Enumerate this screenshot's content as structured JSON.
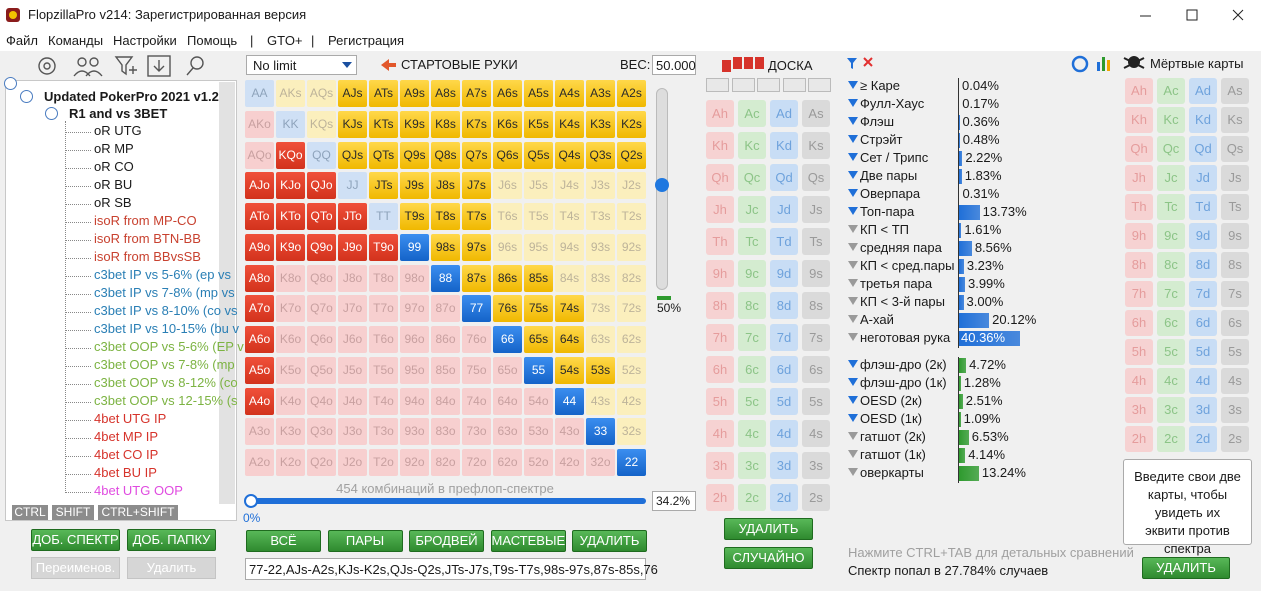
{
  "window": {
    "title": "FlopzillaPro v214: Зарегистрированная версия",
    "menu": [
      "Файл",
      "Команды",
      "Настройки",
      "Помощь",
      "|",
      "GTO+",
      "|",
      "Регистрация"
    ]
  },
  "tree": {
    "root": "Updated PokerPro 2021 v1.2",
    "folder": "R1 and vs 3BET",
    "items": [
      {
        "label": "oR UTG",
        "color": "#1a1a1a"
      },
      {
        "label": "oR MP",
        "color": "#1a1a1a"
      },
      {
        "label": "oR CO",
        "color": "#1a1a1a"
      },
      {
        "label": "oR BU",
        "color": "#1a1a1a"
      },
      {
        "label": "oR SB",
        "color": "#1a1a1a"
      },
      {
        "label": "isoR from MP-CO",
        "color": "#c8412f"
      },
      {
        "label": "isoR from BTN-BB",
        "color": "#c8412f"
      },
      {
        "label": "isoR from BBvsSB",
        "color": "#c8412f"
      },
      {
        "label": "c3bet IP vs 5-6% (ep vs",
        "color": "#2a7fb5"
      },
      {
        "label": "c3bet IP vs 7-8% (mp vs",
        "color": "#2a7fb5"
      },
      {
        "label": "c3bet IP vs 8-10% (co vs",
        "color": "#2a7fb5"
      },
      {
        "label": "c3bet IP vs 10-15% (bu v",
        "color": "#2a7fb5"
      },
      {
        "label": "c3bet OOP vs 5-6% (EP v",
        "color": "#7cb342"
      },
      {
        "label": "c3bet OOP vs 7-8% (mp",
        "color": "#7cb342"
      },
      {
        "label": "c3bet OOP vs 8-12% (co",
        "color": "#7cb342"
      },
      {
        "label": "c3bet OOP vs 12-15% (s",
        "color": "#7cb342"
      },
      {
        "label": "4bet UTG IP",
        "color": "#d6332b"
      },
      {
        "label": "4bet MP IP",
        "color": "#d6332b"
      },
      {
        "label": "4bet CO IP",
        "color": "#d6332b"
      },
      {
        "label": "4bet BU IP",
        "color": "#d6332b"
      },
      {
        "label": "4bet UTG OOP",
        "color": "#e04be0"
      }
    ],
    "tabs": [
      "CTRL",
      "SHIFT",
      "CTRL+SHIFT"
    ],
    "buttons": [
      "ДОБ. СПЕКТР",
      "ДОБ. ПАПКУ"
    ],
    "disabled_buttons": [
      "Переименов.",
      "Удалить"
    ]
  },
  "hands": {
    "game": "No limit",
    "title": "СТАРТОВЫЕ РУКИ",
    "weight_label": "ВЕС:",
    "weight": "50.000",
    "weight_slider": "50%",
    "grid": [
      [
        "AA",
        "AKs",
        "AQs",
        "AJs",
        "ATs",
        "A9s",
        "A8s",
        "A7s",
        "A6s",
        "A5s",
        "A4s",
        "A3s",
        "A2s"
      ],
      [
        "AKo",
        "KK",
        "KQs",
        "KJs",
        "KTs",
        "K9s",
        "K8s",
        "K7s",
        "K6s",
        "K5s",
        "K4s",
        "K3s",
        "K2s"
      ],
      [
        "AQo",
        "KQo",
        "QQ",
        "QJs",
        "QTs",
        "Q9s",
        "Q8s",
        "Q7s",
        "Q6s",
        "Q5s",
        "Q4s",
        "Q3s",
        "Q2s"
      ],
      [
        "AJo",
        "KJo",
        "QJo",
        "JJ",
        "JTs",
        "J9s",
        "J8s",
        "J7s",
        "J6s",
        "J5s",
        "J4s",
        "J3s",
        "J2s"
      ],
      [
        "ATo",
        "KTo",
        "QTo",
        "JTo",
        "TT",
        "T9s",
        "T8s",
        "T7s",
        "T6s",
        "T5s",
        "T4s",
        "T3s",
        "T2s"
      ],
      [
        "A9o",
        "K9o",
        "Q9o",
        "J9o",
        "T9o",
        "99",
        "98s",
        "97s",
        "96s",
        "95s",
        "94s",
        "93s",
        "92s"
      ],
      [
        "A8o",
        "K8o",
        "Q8o",
        "J8o",
        "T8o",
        "98o",
        "88",
        "87s",
        "86s",
        "85s",
        "84s",
        "83s",
        "82s"
      ],
      [
        "A7o",
        "K7o",
        "Q7o",
        "J7o",
        "T7o",
        "97o",
        "87o",
        "77",
        "76s",
        "75s",
        "74s",
        "73s",
        "72s"
      ],
      [
        "A6o",
        "K6o",
        "Q6o",
        "J6o",
        "T6o",
        "96o",
        "86o",
        "76o",
        "66",
        "65s",
        "64s",
        "63s",
        "62s"
      ],
      [
        "A5o",
        "K5o",
        "Q5o",
        "J5o",
        "T5o",
        "95o",
        "85o",
        "75o",
        "65o",
        "55",
        "54s",
        "53s",
        "52s"
      ],
      [
        "A4o",
        "K4o",
        "Q4o",
        "J4o",
        "T4o",
        "94o",
        "84o",
        "74o",
        "64o",
        "54o",
        "44",
        "43s",
        "42s"
      ],
      [
        "A3o",
        "K3o",
        "Q3o",
        "J3o",
        "T3o",
        "93o",
        "83o",
        "73o",
        "63o",
        "53o",
        "43o",
        "33",
        "32s"
      ],
      [
        "A2o",
        "K2o",
        "Q2o",
        "J2o",
        "T2o",
        "92o",
        "82o",
        "72o",
        "62o",
        "52o",
        "42o",
        "32o",
        "22"
      ]
    ],
    "selected": [
      [
        0,
        0,
        0,
        1,
        1,
        1,
        1,
        1,
        1,
        1,
        1,
        1,
        1
      ],
      [
        0,
        0,
        0,
        1,
        1,
        1,
        1,
        1,
        1,
        1,
        1,
        1,
        1
      ],
      [
        0,
        1,
        0,
        1,
        1,
        1,
        1,
        1,
        1,
        1,
        1,
        1,
        1
      ],
      [
        1,
        1,
        1,
        0,
        1,
        1,
        1,
        1,
        0,
        0,
        0,
        0,
        0
      ],
      [
        1,
        1,
        1,
        1,
        0,
        1,
        1,
        1,
        0,
        0,
        0,
        0,
        0
      ],
      [
        1,
        1,
        1,
        1,
        1,
        1,
        1,
        1,
        0,
        0,
        0,
        0,
        0
      ],
      [
        1,
        0,
        0,
        0,
        0,
        0,
        1,
        1,
        1,
        1,
        0,
        0,
        0
      ],
      [
        1,
        0,
        0,
        0,
        0,
        0,
        0,
        1,
        1,
        1,
        1,
        0,
        0
      ],
      [
        1,
        0,
        0,
        0,
        0,
        0,
        0,
        0,
        1,
        1,
        1,
        0,
        0
      ],
      [
        1,
        0,
        0,
        0,
        0,
        0,
        0,
        0,
        0,
        1,
        1,
        1,
        0
      ],
      [
        1,
        0,
        0,
        0,
        0,
        0,
        0,
        0,
        0,
        0,
        1,
        0,
        0
      ],
      [
        0,
        0,
        0,
        0,
        0,
        0,
        0,
        0,
        0,
        0,
        0,
        1,
        0
      ],
      [
        0,
        0,
        0,
        0,
        0,
        0,
        0,
        0,
        0,
        0,
        0,
        0,
        1
      ]
    ],
    "combos": "454 комбинаций в префлоп-спектре",
    "range_min": "0%",
    "range_max": "34.2%",
    "buttons": [
      "ВСЁ",
      "ПАРЫ",
      "БРОДВЕЙ",
      "МАСТЕВЫЕ",
      "УДАЛИТЬ"
    ],
    "range_text": "77-22,AJs-A2s,KJs-K2s,QJs-Q2s,JTs-J7s,T9s-T7s,98s-97s,87s-85s,76"
  },
  "suit_colors": [
    {
      "bg": "#f6d2d2",
      "fg": "#e59c9c"
    },
    {
      "bg": "#d4ecd0",
      "fg": "#8cc487"
    },
    {
      "bg": "#c8ddf5",
      "fg": "#6ea2dc"
    },
    {
      "bg": "#dadada",
      "fg": "#9a9a9a"
    }
  ],
  "board": {
    "title": "ДОСКА",
    "cards": [
      [
        "Ah",
        "Ac",
        "Ad",
        "As"
      ],
      [
        "Kh",
        "Kc",
        "Kd",
        "Ks"
      ],
      [
        "Qh",
        "Qc",
        "Qd",
        "Qs"
      ],
      [
        "Jh",
        "Jc",
        "Jd",
        "Js"
      ],
      [
        "Th",
        "Tc",
        "Td",
        "Ts"
      ],
      [
        "9h",
        "9c",
        "9d",
        "9s"
      ],
      [
        "8h",
        "8c",
        "8d",
        "8s"
      ],
      [
        "7h",
        "7c",
        "7d",
        "7s"
      ],
      [
        "6h",
        "6c",
        "6d",
        "6s"
      ],
      [
        "5h",
        "5c",
        "5d",
        "5s"
      ],
      [
        "4h",
        "4c",
        "4d",
        "4s"
      ],
      [
        "3h",
        "3c",
        "3d",
        "3s"
      ],
      [
        "2h",
        "2c",
        "2d",
        "2s"
      ]
    ],
    "buttons": [
      "УДАЛИТЬ",
      "СЛУЧАЙНО"
    ]
  },
  "stats": {
    "groups": [
      {
        "color": "#1f6fd8",
        "items": [
          {
            "name": "≥ Каре",
            "value": 0.04,
            "label": "0.04%",
            "filter_active": true
          },
          {
            "name": "Фулл-Хаус",
            "value": 0.17,
            "label": "0.17%",
            "filter_active": true
          },
          {
            "name": "Флэш",
            "value": 0.36,
            "label": "0.36%",
            "filter_active": true
          },
          {
            "name": "Стрэйт",
            "value": 0.48,
            "label": "0.48%",
            "filter_active": true
          },
          {
            "name": "Сет / Трипс",
            "value": 2.22,
            "label": "2.22%",
            "filter_active": true
          },
          {
            "name": "Две пары",
            "value": 1.83,
            "label": "1.83%",
            "filter_active": true
          },
          {
            "name": "Оверпара",
            "value": 0.31,
            "label": "0.31%",
            "filter_active": true
          },
          {
            "name": "Топ-пара",
            "value": 13.73,
            "label": "13.73%",
            "filter_active": true
          },
          {
            "name": "КП < ТП",
            "value": 1.61,
            "label": "1.61%",
            "filter_active": false
          },
          {
            "name": "средняя пара",
            "value": 8.56,
            "label": "8.56%",
            "filter_active": false
          },
          {
            "name": "КП < сред.пары",
            "value": 3.23,
            "label": "3.23%",
            "filter_active": false
          },
          {
            "name": "третья пара",
            "value": 3.99,
            "label": "3.99%",
            "filter_active": false
          },
          {
            "name": "КП < 3-й пары",
            "value": 3.0,
            "label": "3.00%",
            "filter_active": false
          },
          {
            "name": "А-хай",
            "value": 20.12,
            "label": "20.12%",
            "filter_active": false
          },
          {
            "name": "неготовая рука",
            "value": 40.36,
            "label": "40.36%",
            "filter_active": false
          }
        ]
      },
      {
        "color": "#2e9a2e",
        "items": [
          {
            "name": "флэш-дро (2к)",
            "value": 4.72,
            "label": "4.72%",
            "filter_active": true
          },
          {
            "name": "флэш-дро (1к)",
            "value": 1.28,
            "label": "1.28%",
            "filter_active": true
          },
          {
            "name": "OESD (2к)",
            "value": 2.51,
            "label": "2.51%",
            "filter_active": true
          },
          {
            "name": "OESD (1к)",
            "value": 1.09,
            "label": "1.09%",
            "filter_active": true
          },
          {
            "name": "гатшот (2к)",
            "value": 6.53,
            "label": "6.53%",
            "filter_active": false
          },
          {
            "name": "гатшот (1к)",
            "value": 4.14,
            "label": "4.14%",
            "filter_active": false
          },
          {
            "name": "оверкарты",
            "value": 13.24,
            "label": "13.24%",
            "filter_active": false
          }
        ]
      }
    ],
    "hint": "Нажмите CTRL+TAB для детальных сравнений",
    "result": "Спектр попал в 27.784% случаев"
  },
  "dead_cards": {
    "title": "Мёртвые карты",
    "cards": [
      [
        "Ah",
        "Ac",
        "Ad",
        "As"
      ],
      [
        "Kh",
        "Kc",
        "Kd",
        "Ks"
      ],
      [
        "Qh",
        "Qc",
        "Qd",
        "Qs"
      ],
      [
        "Jh",
        "Jc",
        "Jd",
        "Js"
      ],
      [
        "Th",
        "Tc",
        "Td",
        "Ts"
      ],
      [
        "9h",
        "9c",
        "9d",
        "9s"
      ],
      [
        "8h",
        "8c",
        "8d",
        "8s"
      ],
      [
        "7h",
        "7c",
        "7d",
        "7s"
      ],
      [
        "6h",
        "6c",
        "6d",
        "6s"
      ],
      [
        "5h",
        "5c",
        "5d",
        "5s"
      ],
      [
        "4h",
        "4c",
        "4d",
        "4s"
      ],
      [
        "3h",
        "3c",
        "3d",
        "3s"
      ],
      [
        "2h",
        "2c",
        "2d",
        "2s"
      ]
    ],
    "prompt": "Введите свои две карты, чтобы увидеть их эквити против спектра",
    "button": "УДАЛИТЬ"
  }
}
